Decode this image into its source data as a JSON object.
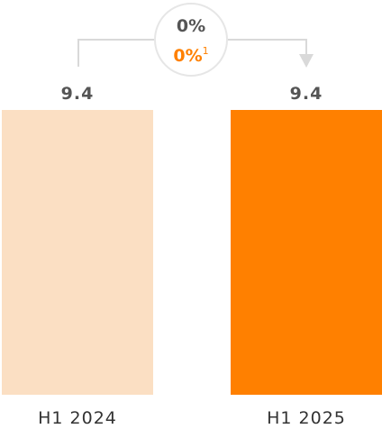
{
  "chart_data": {
    "type": "bar",
    "categories": [
      "H1 2024",
      "H1 2025"
    ],
    "values": [
      9.4,
      9.4
    ],
    "value_labels": [
      "9.4",
      "9.4"
    ],
    "ylim": [
      0,
      9.4
    ],
    "colors": [
      "#fbdfc3",
      "#ff8000"
    ],
    "change": {
      "main": "0%",
      "secondary": "0%",
      "footnote_marker": "1"
    },
    "connector_color": "#d9d9d9",
    "grid": false
  }
}
